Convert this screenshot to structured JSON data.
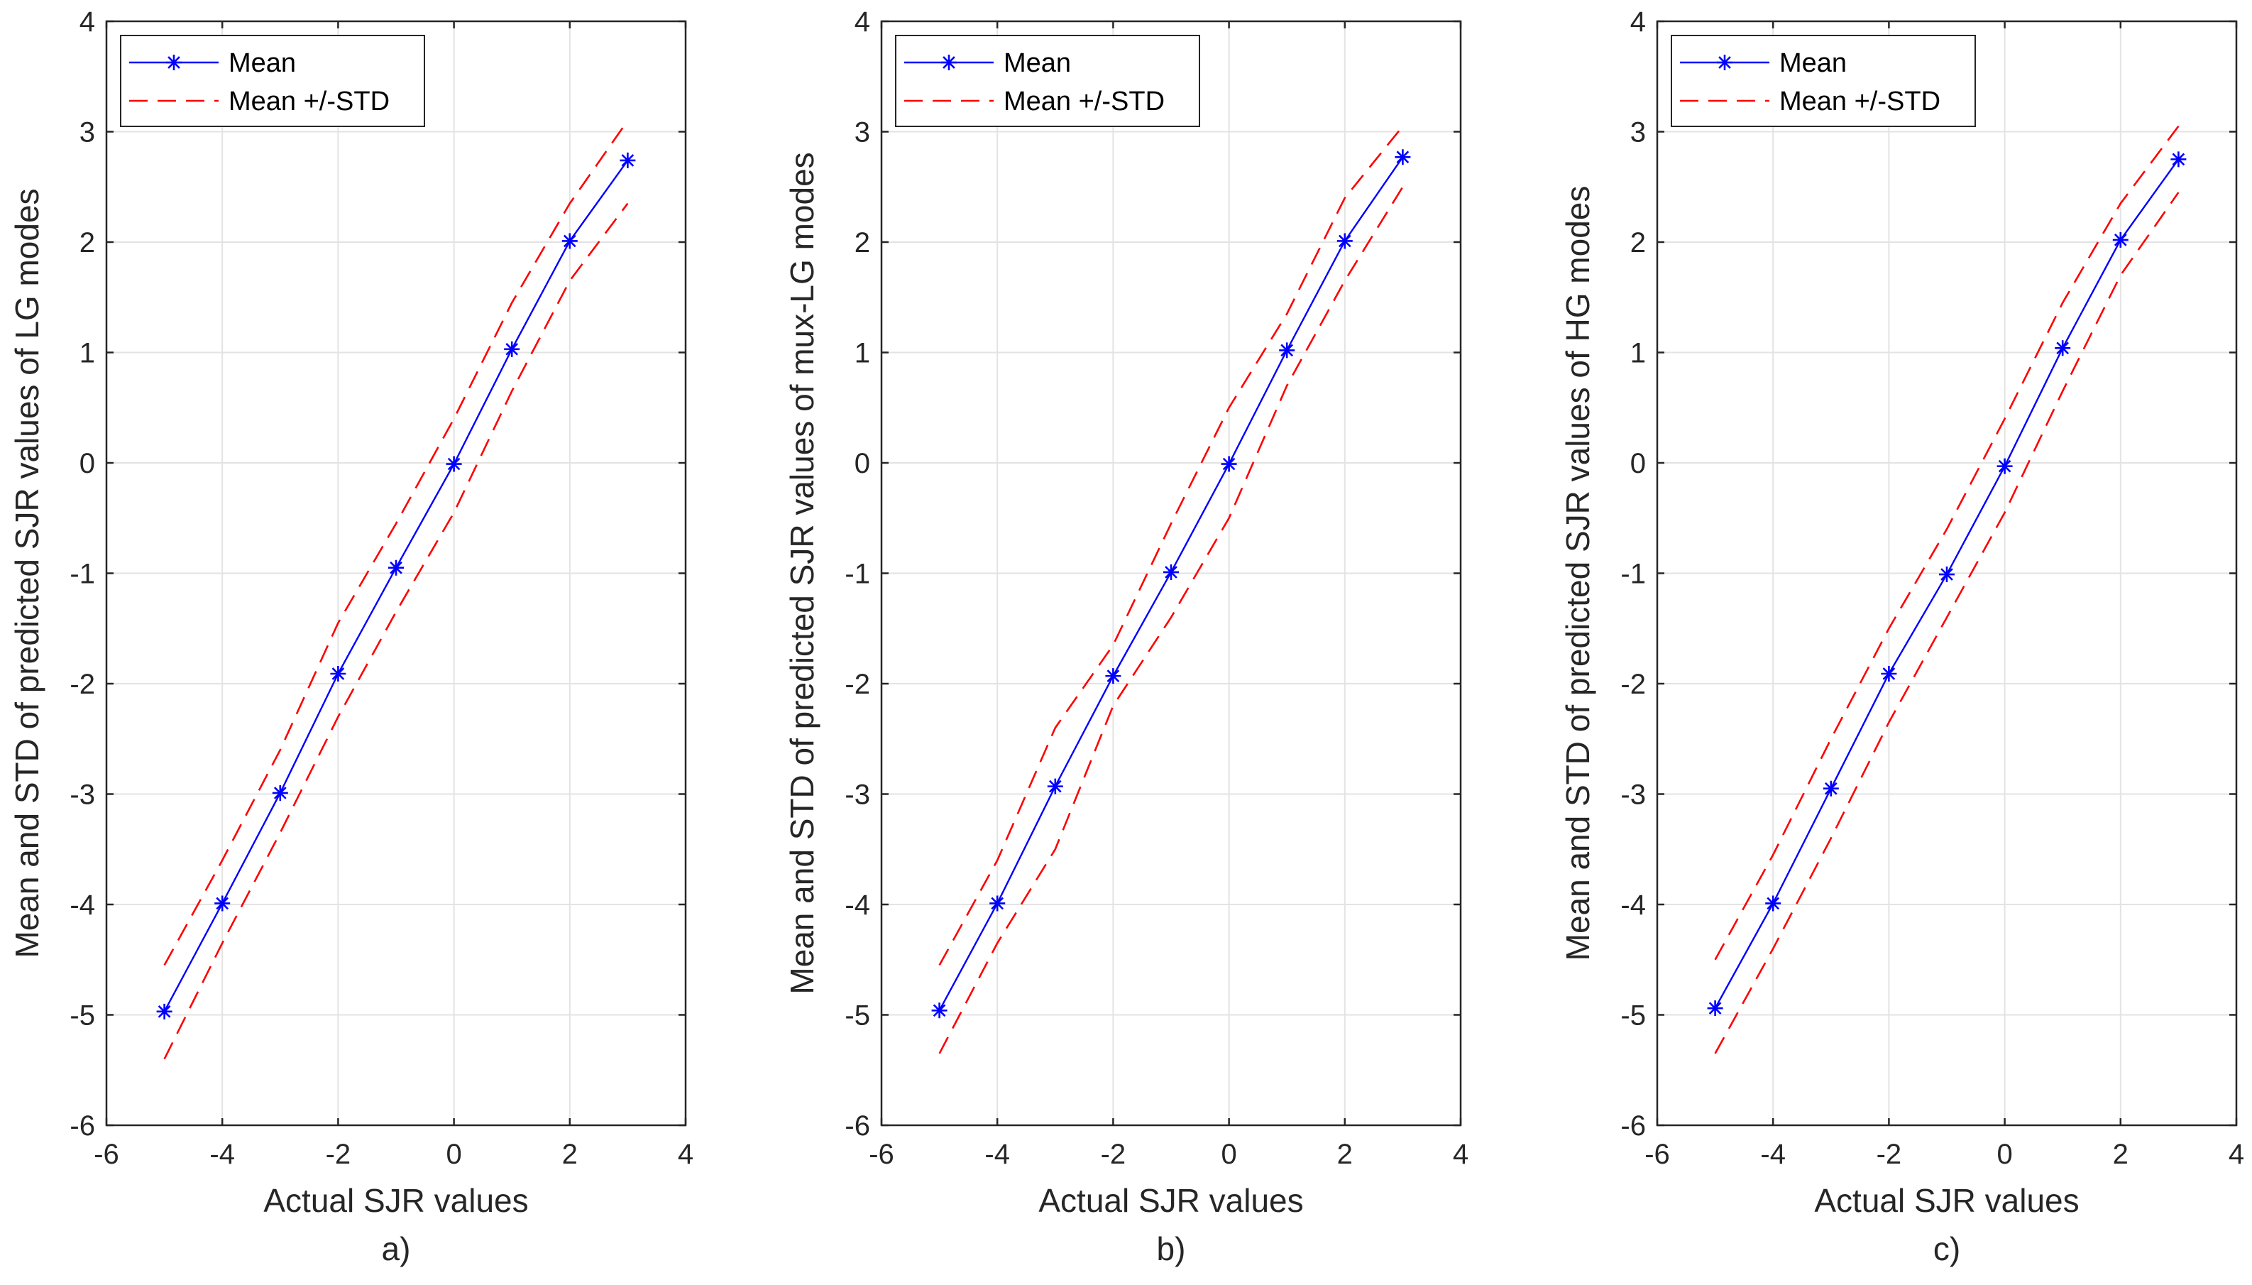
{
  "chart_data": [
    {
      "type": "line",
      "panel_label": "a)",
      "xlabel": "Actual SJR values",
      "ylabel": "Mean and STD of predicted SJR values of LG modes",
      "xlim": [
        -6,
        4
      ],
      "ylim": [
        -6,
        4
      ],
      "xticks": [
        "-6",
        "-4",
        "-2",
        "0",
        "2",
        "4"
      ],
      "yticks": [
        "4",
        "3",
        "2",
        "1",
        "0",
        "-1",
        "-2",
        "-3",
        "-4",
        "-5",
        "-6"
      ],
      "grid": true,
      "legend": "top-left",
      "x": [
        -5,
        -4,
        -3,
        -2,
        -1,
        0,
        1,
        2,
        3
      ],
      "series": [
        {
          "name": "Mean",
          "style": "solid-star",
          "color": "#0000ff",
          "values": [
            -4.97,
            -3.99,
            -2.99,
            -1.91,
            -0.95,
            -0.01,
            1.03,
            2.01,
            2.74
          ]
        },
        {
          "name": "Mean +/-STD",
          "style": "dashed",
          "color": "#ff0000",
          "values": [
            -4.55,
            -3.6,
            -2.6,
            -1.45,
            -0.55,
            0.4,
            1.45,
            2.35,
            3.1
          ]
        },
        {
          "name": "Mean +/-STD (lower)",
          "style": "dashed",
          "color": "#ff0000",
          "legend": false,
          "values": [
            -5.4,
            -4.35,
            -3.35,
            -2.3,
            -1.35,
            -0.45,
            0.65,
            1.65,
            2.35
          ]
        }
      ]
    },
    {
      "type": "line",
      "panel_label": "b)",
      "xlabel": "Actual SJR values",
      "ylabel": "Mean and STD of predicted SJR values of mux-LG modes",
      "xlim": [
        -6,
        4
      ],
      "ylim": [
        -6,
        4
      ],
      "xticks": [
        "-6",
        "-4",
        "-2",
        "0",
        "2",
        "4"
      ],
      "yticks": [
        "4",
        "3",
        "2",
        "1",
        "0",
        "-1",
        "-2",
        "-3",
        "-4",
        "-5",
        "-6"
      ],
      "grid": true,
      "legend": "top-left",
      "x": [
        -5,
        -4,
        -3,
        -2,
        -1,
        0,
        1,
        2,
        3
      ],
      "series": [
        {
          "name": "Mean",
          "style": "solid-star",
          "color": "#0000ff",
          "values": [
            -4.96,
            -3.99,
            -2.93,
            -1.93,
            -0.99,
            -0.01,
            1.02,
            2.01,
            2.77
          ]
        },
        {
          "name": "Mean +/-STD",
          "style": "dashed",
          "color": "#ff0000",
          "values": [
            -4.55,
            -3.6,
            -2.4,
            -1.65,
            -0.55,
            0.5,
            1.35,
            2.4,
            3.05
          ]
        },
        {
          "name": "Mean +/-STD (lower)",
          "style": "dashed",
          "color": "#ff0000",
          "legend": false,
          "values": [
            -5.35,
            -4.35,
            -3.5,
            -2.2,
            -1.4,
            -0.5,
            0.7,
            1.65,
            2.5
          ]
        }
      ]
    },
    {
      "type": "line",
      "panel_label": "c)",
      "xlabel": "Actual SJR values",
      "ylabel": "Mean and STD of predicted SJR values of HG modes",
      "xlim": [
        -6,
        4
      ],
      "ylim": [
        -6,
        4
      ],
      "xticks": [
        "-6",
        "-4",
        "-2",
        "0",
        "2",
        "4"
      ],
      "yticks": [
        "4",
        "3",
        "2",
        "1",
        "0",
        "-1",
        "-2",
        "-3",
        "-4",
        "-5",
        "-6"
      ],
      "grid": true,
      "legend": "top-left",
      "x": [
        -5,
        -4,
        -3,
        -2,
        -1,
        0,
        1,
        2,
        3
      ],
      "series": [
        {
          "name": "Mean",
          "style": "solid-star",
          "color": "#0000ff",
          "values": [
            -4.94,
            -3.99,
            -2.95,
            -1.91,
            -1.01,
            -0.03,
            1.04,
            2.02,
            2.75
          ]
        },
        {
          "name": "Mean +/-STD",
          "style": "dashed",
          "color": "#ff0000",
          "values": [
            -4.5,
            -3.55,
            -2.5,
            -1.5,
            -0.6,
            0.4,
            1.45,
            2.35,
            3.05
          ]
        },
        {
          "name": "Mean +/-STD (lower)",
          "style": "dashed",
          "color": "#ff0000",
          "legend": false,
          "values": [
            -5.35,
            -4.4,
            -3.4,
            -2.35,
            -1.4,
            -0.45,
            0.65,
            1.7,
            2.45
          ]
        }
      ]
    }
  ]
}
